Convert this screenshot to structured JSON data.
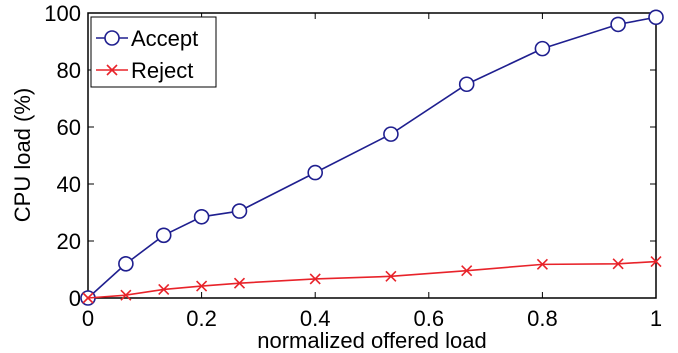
{
  "chart_data": {
    "type": "line",
    "xlabel": "normalized offered load",
    "ylabel": "CPU load (%)",
    "xlim": [
      0,
      1
    ],
    "ylim": [
      0,
      100
    ],
    "xticks": [
      0,
      0.2,
      0.4,
      0.6,
      0.8,
      1
    ],
    "yticks": [
      0,
      20,
      40,
      60,
      80,
      100
    ],
    "xtick_labels": [
      "0",
      "0.2",
      "0.4",
      "0.6",
      "0.8",
      "1"
    ],
    "ytick_labels": [
      "0",
      "20",
      "40",
      "60",
      "80",
      "100"
    ],
    "legend_position": "top-left",
    "grid": false,
    "series": [
      {
        "name": "Accept",
        "color": "#1f1f8f",
        "marker": "circle",
        "x": [
          0,
          0.0667,
          0.1333,
          0.2,
          0.2667,
          0.4,
          0.5333,
          0.6667,
          0.8,
          0.9333,
          1.0
        ],
        "y": [
          0,
          12,
          22,
          28.5,
          30.5,
          44,
          57.5,
          75,
          87.5,
          96,
          98.5
        ]
      },
      {
        "name": "Reject",
        "color": "#e8232a",
        "marker": "x",
        "x": [
          0,
          0.0667,
          0.1333,
          0.2,
          0.2667,
          0.4,
          0.5333,
          0.6667,
          0.8,
          0.9333,
          1.0
        ],
        "y": [
          0,
          1,
          3,
          4.2,
          5.2,
          6.7,
          7.6,
          9.6,
          11.8,
          12,
          12.8
        ]
      }
    ]
  }
}
